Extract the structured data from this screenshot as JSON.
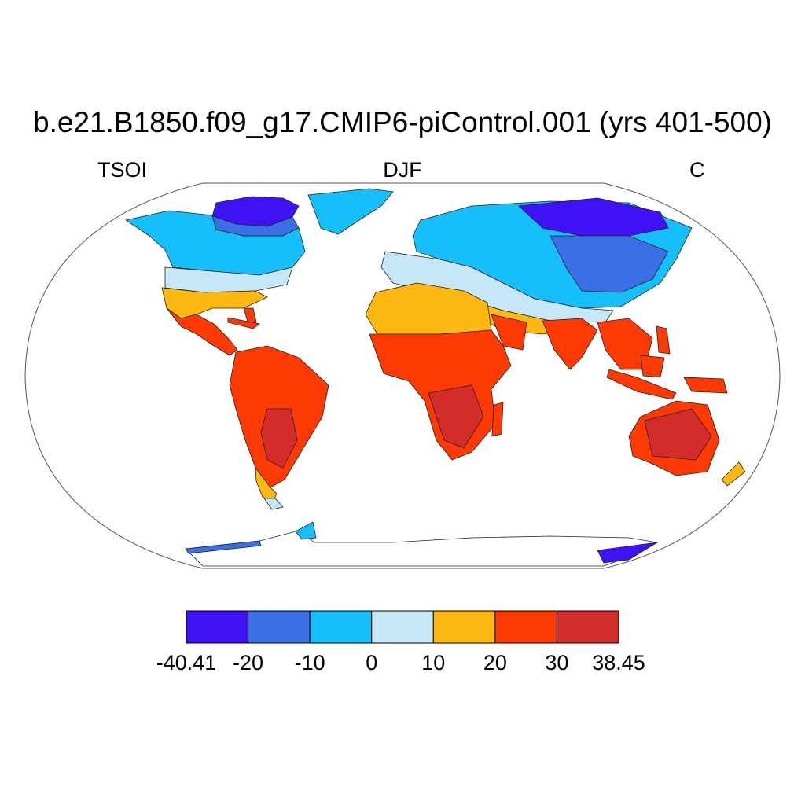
{
  "title": "b.e21.B1850.f09_g17.CMIP6-piControl.001 (yrs 401-500)",
  "subtitle_left": "TSOI",
  "subtitle_center": "DJF",
  "subtitle_right": "C",
  "map": {
    "projection": "Robinson",
    "variable": "TSOI",
    "season": "DJF",
    "units": "C",
    "ocean_color": "#ffffff"
  },
  "colorbar": {
    "min": -40.41,
    "max": 38.45,
    "levels": [
      -20,
      -10,
      0,
      10,
      20,
      30
    ],
    "tick_labels": [
      "-40.41",
      "-20",
      "-10",
      "0",
      "10",
      "20",
      "30",
      "38.45"
    ],
    "colors": [
      "#3e12f5",
      "#3b6fe6",
      "#16bff9",
      "#c6e7f6",
      "#fdb912",
      "#fd3a03",
      "#d42b2b"
    ]
  }
}
